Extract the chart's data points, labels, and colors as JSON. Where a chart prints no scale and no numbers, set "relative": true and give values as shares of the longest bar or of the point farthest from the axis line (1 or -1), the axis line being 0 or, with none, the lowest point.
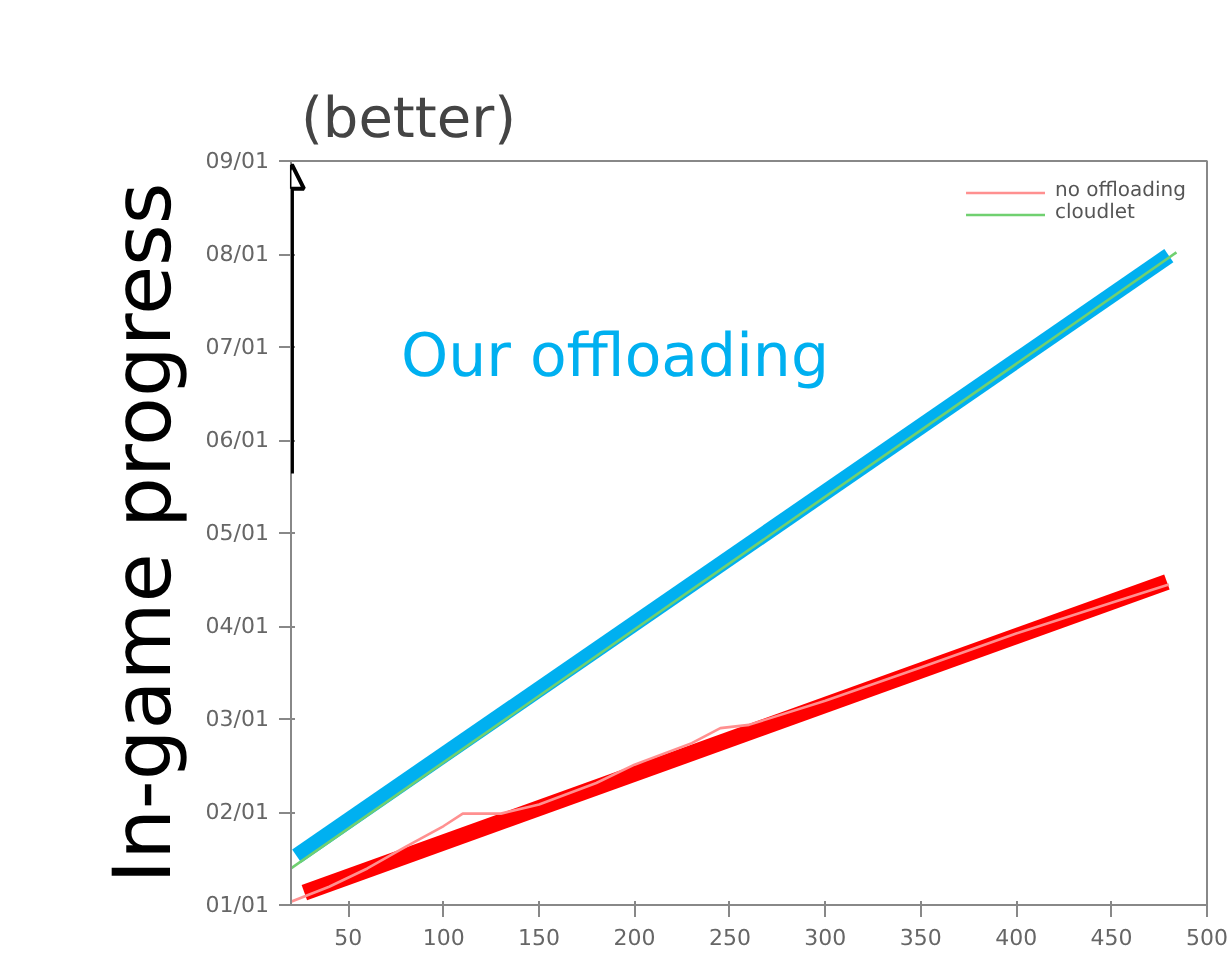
{
  "chart_data": {
    "type": "line",
    "ylabel": "In-game progress",
    "relative": true,
    "annotations": [
      "(better)",
      "Our offloading",
      "01/01",
      "02/01",
      "03/01",
      "04/01",
      "05/01",
      "06/01",
      "07/01",
      "08/01",
      "09/01"
    ],
    "xlim": [
      20,
      500
    ],
    "xticks": [
      50,
      100,
      150,
      200,
      250,
      300,
      350,
      400,
      450,
      500
    ],
    "series": [
      {
        "name": "no offloading",
        "color": "#ff9090",
        "x": [
          20,
          40,
          60,
          80,
          100,
          110,
          130,
          150,
          180,
          200,
          230,
          245,
          260,
          300,
          350,
          400,
          450,
          480
        ],
        "values": [
          0.005,
          0.028,
          0.056,
          0.089,
          0.121,
          0.14,
          0.14,
          0.154,
          0.187,
          0.215,
          0.248,
          0.271,
          0.276,
          0.313,
          0.364,
          0.416,
          0.463,
          0.491
        ]
      },
      {
        "name": "cloudlet",
        "color": "#70d070",
        "x": [
          20,
          484
        ],
        "values": [
          0.056,
          1
        ]
      },
      {
        "color": "#00b0f0",
        "x": [
          23,
          480
        ],
        "values": [
          0.075,
          0.995
        ]
      },
      {
        "color": "#ff0000",
        "x": [
          27,
          479
        ],
        "values": [
          0.019,
          0.495
        ]
      }
    ],
    "grid": false,
    "legend": "top right",
    "marker": "none",
    "line_style": "solid"
  }
}
